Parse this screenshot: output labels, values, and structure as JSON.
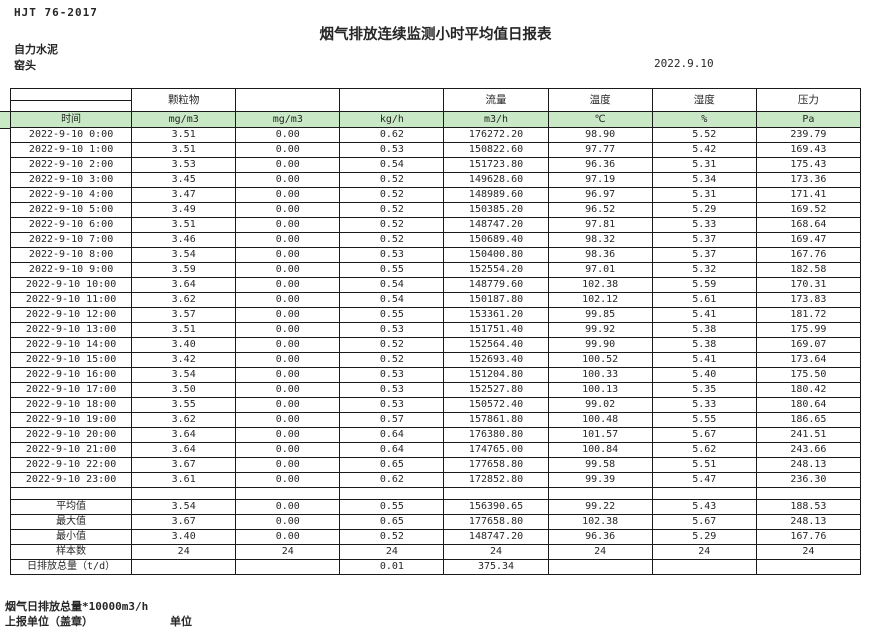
{
  "header": {
    "doc_code": "HJT 76-2017",
    "title": "烟气排放连续监测小时平均值日报表",
    "company": "自力水泥",
    "location": "窑头",
    "date": "2022.9.10"
  },
  "table": {
    "group_headers": [
      "",
      "颗粒物",
      "",
      "",
      "流量",
      "温度",
      "湿度",
      "压力"
    ],
    "unit_headers": [
      "时间",
      "mg/m3",
      "mg/m3",
      "kg/h",
      "m3/h",
      "℃",
      "%",
      "Pa"
    ],
    "rows": [
      [
        "2022-9-10 0:00",
        "3.51",
        "0.00",
        "0.62",
        "176272.20",
        "98.90",
        "5.52",
        "239.79"
      ],
      [
        "2022-9-10 1:00",
        "3.51",
        "0.00",
        "0.53",
        "150822.60",
        "97.77",
        "5.42",
        "169.43"
      ],
      [
        "2022-9-10 2:00",
        "3.53",
        "0.00",
        "0.54",
        "151723.80",
        "96.36",
        "5.31",
        "175.43"
      ],
      [
        "2022-9-10 3:00",
        "3.45",
        "0.00",
        "0.52",
        "149628.60",
        "97.19",
        "5.34",
        "173.36"
      ],
      [
        "2022-9-10 4:00",
        "3.47",
        "0.00",
        "0.52",
        "148989.60",
        "96.97",
        "5.31",
        "171.41"
      ],
      [
        "2022-9-10 5:00",
        "3.49",
        "0.00",
        "0.52",
        "150385.20",
        "96.52",
        "5.29",
        "169.52"
      ],
      [
        "2022-9-10 6:00",
        "3.51",
        "0.00",
        "0.52",
        "148747.20",
        "97.81",
        "5.33",
        "168.64"
      ],
      [
        "2022-9-10 7:00",
        "3.46",
        "0.00",
        "0.52",
        "150689.40",
        "98.32",
        "5.37",
        "169.47"
      ],
      [
        "2022-9-10 8:00",
        "3.54",
        "0.00",
        "0.53",
        "150400.80",
        "98.36",
        "5.37",
        "167.76"
      ],
      [
        "2022-9-10 9:00",
        "3.59",
        "0.00",
        "0.55",
        "152554.20",
        "97.01",
        "5.32",
        "182.58"
      ],
      [
        "2022-9-10 10:00",
        "3.64",
        "0.00",
        "0.54",
        "148779.60",
        "102.38",
        "5.59",
        "170.31"
      ],
      [
        "2022-9-10 11:00",
        "3.62",
        "0.00",
        "0.54",
        "150187.80",
        "102.12",
        "5.61",
        "173.83"
      ],
      [
        "2022-9-10 12:00",
        "3.57",
        "0.00",
        "0.55",
        "153361.20",
        "99.85",
        "5.41",
        "181.72"
      ],
      [
        "2022-9-10 13:00",
        "3.51",
        "0.00",
        "0.53",
        "151751.40",
        "99.92",
        "5.38",
        "175.99"
      ],
      [
        "2022-9-10 14:00",
        "3.40",
        "0.00",
        "0.52",
        "152564.40",
        "99.90",
        "5.38",
        "169.07"
      ],
      [
        "2022-9-10 15:00",
        "3.42",
        "0.00",
        "0.52",
        "152693.40",
        "100.52",
        "5.41",
        "173.64"
      ],
      [
        "2022-9-10 16:00",
        "3.54",
        "0.00",
        "0.53",
        "151204.80",
        "100.33",
        "5.40",
        "175.50"
      ],
      [
        "2022-9-10 17:00",
        "3.50",
        "0.00",
        "0.53",
        "152527.80",
        "100.13",
        "5.35",
        "180.42"
      ],
      [
        "2022-9-10 18:00",
        "3.55",
        "0.00",
        "0.53",
        "150572.40",
        "99.02",
        "5.33",
        "180.64"
      ],
      [
        "2022-9-10 19:00",
        "3.62",
        "0.00",
        "0.57",
        "157861.80",
        "100.48",
        "5.55",
        "186.65"
      ],
      [
        "2022-9-10 20:00",
        "3.64",
        "0.00",
        "0.64",
        "176380.80",
        "101.57",
        "5.67",
        "241.51"
      ],
      [
        "2022-9-10 21:00",
        "3.64",
        "0.00",
        "0.64",
        "174765.00",
        "100.84",
        "5.62",
        "243.66"
      ],
      [
        "2022-9-10 22:00",
        "3.67",
        "0.00",
        "0.65",
        "177658.80",
        "99.58",
        "5.51",
        "248.13"
      ],
      [
        "2022-9-10 23:00",
        "3.61",
        "0.00",
        "0.62",
        "172852.80",
        "99.39",
        "5.47",
        "236.30"
      ]
    ],
    "spacer_row": [
      "",
      "",
      "",
      "",
      "",
      "",
      "",
      ""
    ],
    "summary_rows": [
      [
        "平均值",
        "3.54",
        "0.00",
        "0.55",
        "156390.65",
        "99.22",
        "5.43",
        "188.53"
      ],
      [
        "最大值",
        "3.67",
        "0.00",
        "0.65",
        "177658.80",
        "102.38",
        "5.67",
        "248.13"
      ],
      [
        "最小值",
        "3.40",
        "0.00",
        "0.52",
        "148747.20",
        "96.36",
        "5.29",
        "167.76"
      ],
      [
        "样本数",
        "24",
        "24",
        "24",
        "24",
        "24",
        "24",
        "24"
      ],
      [
        "日排放总量（t/d）",
        "",
        "",
        "0.01",
        "375.34",
        "",
        "",
        ""
      ]
    ]
  },
  "footer": {
    "note": "烟气日排放总量*10000m3/h",
    "report_unit_label": "上报单位（盖章）",
    "unit_label": "单位"
  },
  "colors": {
    "header_green": "#c9e9c6",
    "border": "#1a1a1a",
    "text": "#262626"
  }
}
